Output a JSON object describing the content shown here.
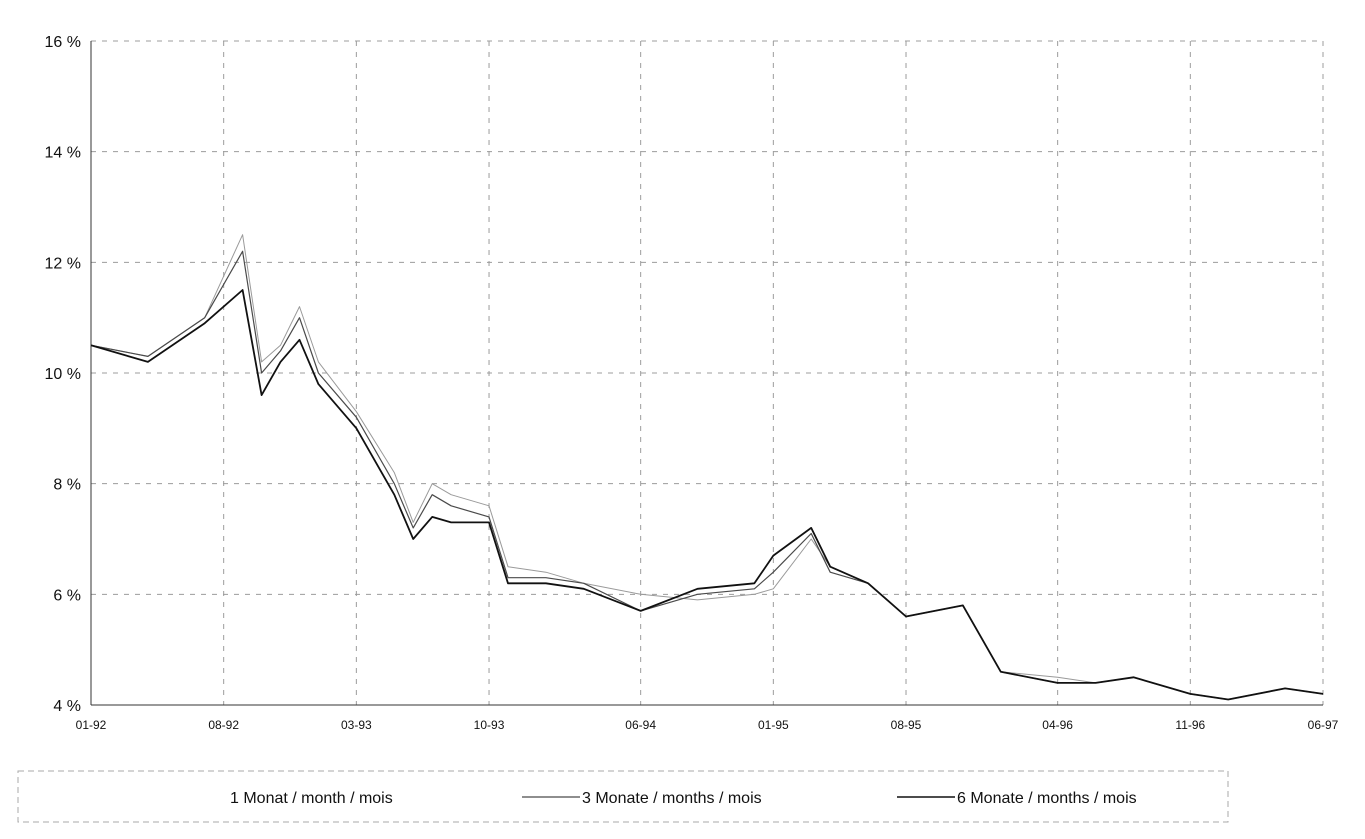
{
  "chart_data": {
    "type": "line",
    "title": "",
    "xlabel": "",
    "ylabel": "",
    "x_ticks": [
      "01-92",
      "08-92",
      "03-93",
      "10-93",
      "06-94",
      "01-95",
      "08-95",
      "04-96",
      "11-96",
      "06-97"
    ],
    "y_ticks": [
      "4 %",
      "6 %",
      "8 %",
      "10 %",
      "12 %",
      "14 %",
      "16 %"
    ],
    "ylim": [
      4,
      16
    ],
    "grid": true,
    "legend_position": "bottom",
    "series": [
      {
        "name": "1 Monat / month / mois",
        "color": "#9a9a9a",
        "x": [
          "01-92",
          "04-92",
          "07-92",
          "09-92",
          "10-92",
          "11-92",
          "12-92",
          "01-93",
          "03-93",
          "05-93",
          "06-93",
          "07-93",
          "08-93",
          "10-93",
          "11-93",
          "01-94",
          "03-94",
          "06-94",
          "09-94",
          "12-94",
          "01-95",
          "03-95",
          "04-95",
          "06-95",
          "08-95",
          "11-95",
          "01-96",
          "04-96",
          "06-96",
          "08-96",
          "11-96",
          "01-97",
          "04-97",
          "06-97"
        ],
        "values": [
          10.5,
          10.3,
          11.0,
          12.5,
          10.2,
          10.5,
          11.2,
          10.2,
          9.3,
          8.2,
          7.3,
          8.0,
          7.8,
          7.6,
          6.5,
          6.4,
          6.2,
          6.0,
          5.9,
          6.0,
          6.1,
          7.0,
          6.5,
          6.2,
          5.6,
          5.8,
          4.6,
          4.5,
          4.4,
          4.5,
          4.2,
          4.1,
          4.3,
          4.2
        ]
      },
      {
        "name": "3 Monate / months / mois",
        "color": "#4a4a4a",
        "x": [
          "01-92",
          "04-92",
          "07-92",
          "09-92",
          "10-92",
          "11-92",
          "12-92",
          "01-93",
          "03-93",
          "05-93",
          "06-93",
          "07-93",
          "08-93",
          "10-93",
          "11-93",
          "01-94",
          "03-94",
          "06-94",
          "09-94",
          "12-94",
          "01-95",
          "03-95",
          "04-95",
          "06-95",
          "08-95",
          "11-95",
          "01-96",
          "04-96",
          "06-96",
          "08-96",
          "11-96",
          "01-97",
          "04-97",
          "06-97"
        ],
        "values": [
          10.5,
          10.3,
          11.0,
          12.2,
          10.0,
          10.4,
          11.0,
          10.0,
          9.2,
          8.0,
          7.2,
          7.8,
          7.6,
          7.4,
          6.3,
          6.3,
          6.2,
          5.7,
          6.0,
          6.1,
          6.4,
          7.1,
          6.4,
          6.2,
          5.6,
          5.8,
          4.6,
          4.4,
          4.4,
          4.5,
          4.2,
          4.1,
          4.3,
          4.2
        ]
      },
      {
        "name": "6 Monate / months / mois",
        "color": "#111111",
        "x": [
          "01-92",
          "04-92",
          "07-92",
          "09-92",
          "10-92",
          "11-92",
          "12-92",
          "01-93",
          "03-93",
          "05-93",
          "06-93",
          "07-93",
          "08-93",
          "10-93",
          "11-93",
          "01-94",
          "03-94",
          "06-94",
          "09-94",
          "12-94",
          "01-95",
          "03-95",
          "04-95",
          "06-95",
          "08-95",
          "11-95",
          "01-96",
          "04-96",
          "06-96",
          "08-96",
          "11-96",
          "01-97",
          "04-97",
          "06-97"
        ],
        "values": [
          10.5,
          10.2,
          10.9,
          11.5,
          9.6,
          10.2,
          10.6,
          9.8,
          9.0,
          7.8,
          7.0,
          7.4,
          7.3,
          7.3,
          6.2,
          6.2,
          6.1,
          5.7,
          6.1,
          6.2,
          6.7,
          7.2,
          6.5,
          6.2,
          5.6,
          5.8,
          4.6,
          4.4,
          4.4,
          4.5,
          4.2,
          4.1,
          4.3,
          4.2
        ]
      }
    ]
  }
}
